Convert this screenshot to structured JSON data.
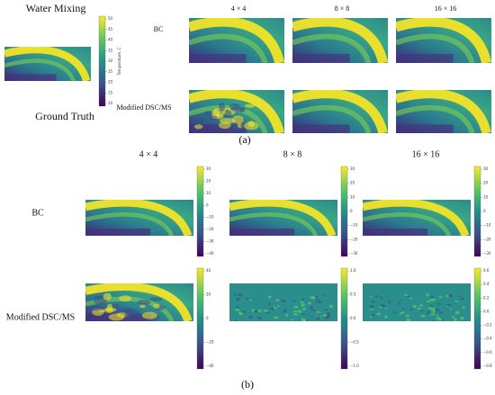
{
  "panel_a": {
    "title": "Water Mixing",
    "ground_truth_label": "Ground Truth",
    "colorbar_label": "Temperature, C",
    "colorbar_ticks": [
      "50",
      "45",
      "40",
      "35",
      "30",
      "25",
      "20",
      "15",
      "10"
    ],
    "columns": [
      "4 × 4",
      "8 × 8",
      "16 × 16"
    ],
    "rows": [
      "BC",
      "Modified DSC/MS"
    ],
    "caption": "(a)"
  },
  "panel_b": {
    "columns": [
      "4 × 4",
      "8 × 8",
      "16 × 16"
    ],
    "rows": [
      "BC",
      "Modified DSC/MS"
    ],
    "colorbar_ticks": [
      [
        [
          "30",
          "20",
          "10",
          "0",
          "−10",
          "−20",
          "−30",
          "−40"
        ],
        [
          "40",
          "20",
          "0",
          "−20",
          "−40"
        ]
      ],
      [
        [
          "30",
          "20",
          "10",
          "0",
          "−10",
          "−20",
          "−30"
        ],
        [
          "1.0",
          "0.5",
          "0.0",
          "−0.5",
          "−1.0"
        ]
      ],
      [
        [
          "30",
          "20",
          "10",
          "0",
          "−10",
          "−20",
          "−30"
        ],
        [
          "0.6",
          "0.4",
          "0.2",
          "0.0",
          "−0.2",
          "−0.4",
          "−0.6",
          "−0.8"
        ]
      ]
    ],
    "caption": "(b)"
  }
}
